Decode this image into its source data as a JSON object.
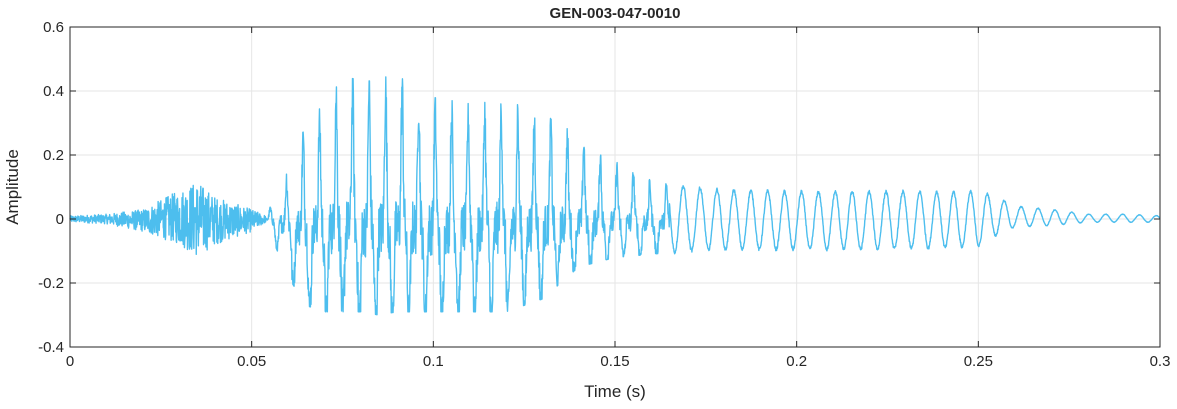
{
  "chart_data": {
    "type": "line",
    "title": "GEN-003-047-0010",
    "xlabel": "Time (s)",
    "ylabel": "Amplitude",
    "xlim": [
      0,
      0.3
    ],
    "ylim": [
      -0.4,
      0.6
    ],
    "x_ticks": [
      0,
      0.05,
      0.1,
      0.15,
      0.2,
      0.25,
      0.3
    ],
    "x_tick_labels": [
      "0",
      "0.05",
      "0.1",
      "0.15",
      "0.2",
      "0.25",
      "0.3"
    ],
    "y_ticks": [
      -0.4,
      -0.2,
      0,
      0.2,
      0.4,
      0.6
    ],
    "y_tick_labels": [
      "-0.4",
      "-0.2",
      "0",
      "0.2",
      "0.4",
      "0.6"
    ],
    "grid": true,
    "series": [
      {
        "color": "#4DBEEE",
        "envelope": {
          "x": [
            0,
            0.01,
            0.02,
            0.03,
            0.035,
            0.04,
            0.05,
            0.054,
            0.056,
            0.06,
            0.065,
            0.07,
            0.075,
            0.08,
            0.085,
            0.09,
            0.095,
            0.1,
            0.11,
            0.12,
            0.13,
            0.14,
            0.15,
            0.16,
            0.17,
            0.18,
            0.2,
            0.22,
            0.24,
            0.25,
            0.255,
            0.26,
            0.27,
            0.28,
            0.29,
            0.3
          ],
          "upper": [
            0.01,
            0.015,
            0.03,
            0.09,
            0.12,
            0.07,
            0.03,
            0.01,
            0.06,
            0.15,
            0.3,
            0.36,
            0.45,
            0.43,
            0.44,
            0.45,
            0.41,
            0.38,
            0.36,
            0.37,
            0.33,
            0.26,
            0.18,
            0.12,
            0.1,
            0.09,
            0.085,
            0.085,
            0.085,
            0.085,
            0.07,
            0.04,
            0.03,
            0.015,
            0.015,
            0.01
          ],
          "lower": [
            -0.01,
            -0.015,
            -0.04,
            -0.08,
            -0.12,
            -0.08,
            -0.04,
            -0.01,
            -0.07,
            -0.18,
            -0.27,
            -0.29,
            -0.29,
            -0.29,
            -0.3,
            -0.29,
            -0.29,
            -0.29,
            -0.29,
            -0.29,
            -0.25,
            -0.15,
            -0.12,
            -0.11,
            -0.1,
            -0.095,
            -0.095,
            -0.095,
            -0.09,
            -0.085,
            -0.05,
            -0.025,
            -0.02,
            -0.01,
            -0.01,
            -0.01
          ]
        }
      }
    ]
  }
}
